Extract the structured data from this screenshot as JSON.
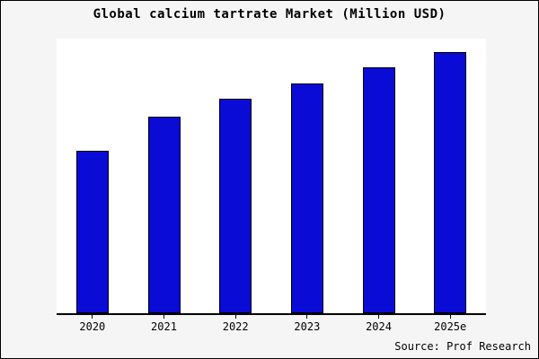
{
  "footer": {
    "source": "Source: Prof Research"
  },
  "chart_data": {
    "type": "bar",
    "title": "Global calcium tartrate Market (Million USD)",
    "xlabel": "",
    "ylabel": "",
    "categories": [
      "2020",
      "2021",
      "2022",
      "2023",
      "2024",
      "2025e"
    ],
    "values": [
      62,
      75,
      82,
      88,
      94,
      100
    ],
    "ylim": [
      0,
      105
    ],
    "grid": false,
    "legend_position": "none",
    "bar_color": "#0b0bd6",
    "bar_border_color": "#000000",
    "background_color": "#f5f5f5",
    "plot_background_color": "#ffffff"
  }
}
